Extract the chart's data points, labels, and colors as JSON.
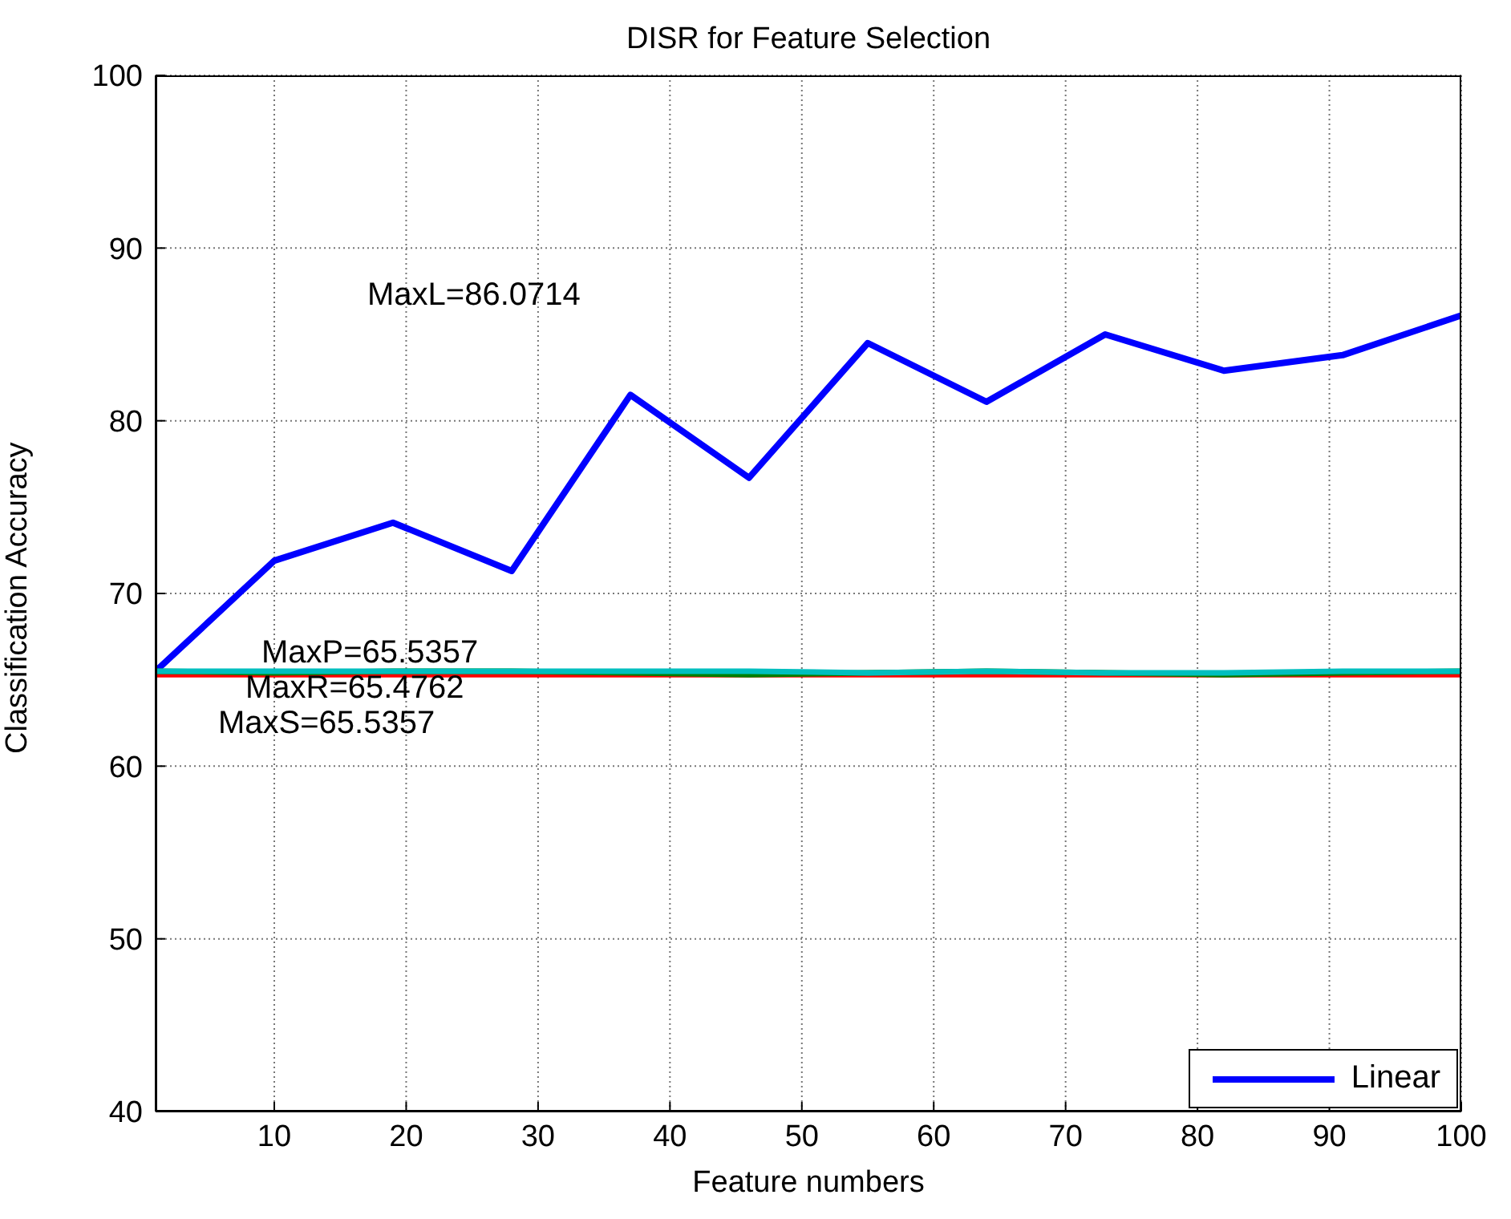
{
  "chart_data": {
    "type": "line",
    "title": "DISR for Feature Selection",
    "xlabel": "Feature numbers",
    "ylabel": "Classification Accuracy",
    "x": [
      1,
      10,
      19,
      28,
      37,
      46,
      55,
      64,
      73,
      82,
      91,
      100
    ],
    "series": [
      {
        "name": "Linear",
        "color": "#0000ff",
        "values": [
          65.5,
          71.9,
          74.1,
          71.3,
          81.5,
          76.7,
          84.5,
          81.1,
          85.0,
          82.9,
          83.8,
          86.1
        ]
      },
      {
        "color": "#ff0000",
        "values": [
          65.3,
          65.3,
          65.3,
          65.3,
          65.3,
          65.3,
          65.3,
          65.3,
          65.3,
          65.3,
          65.3,
          65.3
        ]
      },
      {
        "color": "#008000",
        "values": [
          65.5,
          65.4,
          65.5,
          65.5,
          65.4,
          65.3,
          65.4,
          65.5,
          65.4,
          65.3,
          65.4,
          65.5
        ]
      },
      {
        "color": "#00bfbf",
        "values": [
          65.5,
          65.5,
          65.5,
          65.5,
          65.5,
          65.5,
          65.4,
          65.5,
          65.4,
          65.4,
          65.5,
          65.5
        ]
      }
    ],
    "annotations": [
      "MaxL=86.0714",
      "MaxP=65.5357",
      "MaxR=65.4762",
      "MaxS=65.5357"
    ],
    "xlim": [
      1,
      100
    ],
    "xticks": [
      10,
      20,
      30,
      40,
      50,
      60,
      70,
      80,
      90,
      100
    ],
    "ylim": [
      40,
      100
    ],
    "yticks": [
      40,
      50,
      60,
      70,
      80,
      90,
      100
    ],
    "grid": true,
    "legend": "bottom right",
    "line_style": "solid",
    "marker": "none"
  }
}
